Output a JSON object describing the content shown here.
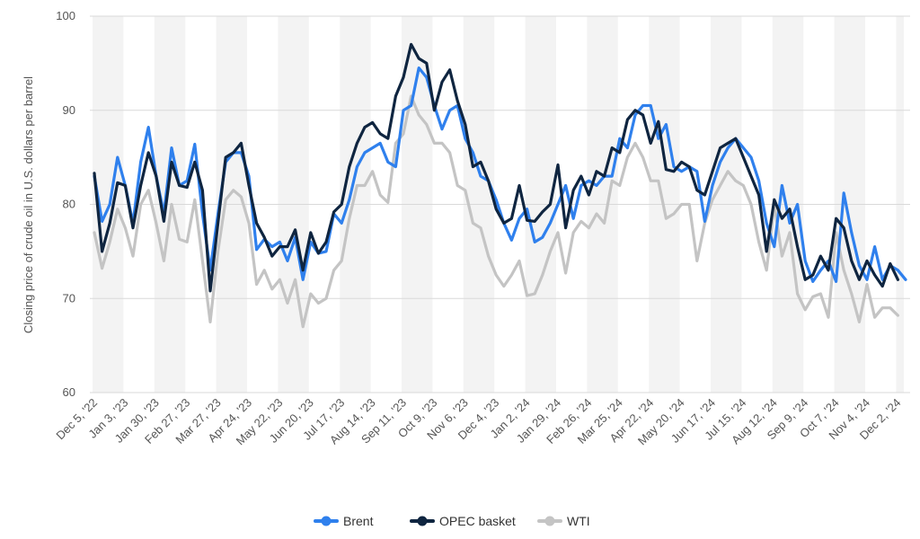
{
  "chart_data": {
    "type": "line",
    "title": "",
    "ylabel": "Closing price of crude oil in U.S. dollars per barrel",
    "xlabel": "",
    "ylim": [
      60,
      100
    ],
    "yticks": [
      60,
      70,
      80,
      90,
      100
    ],
    "grid": true,
    "legend_position": "bottom-center",
    "x_tick_labels": [
      "Dec 5, '22",
      "Jan 3, '23",
      "Jan 30, '23",
      "Feb 27, '23",
      "Mar 27, '23",
      "Apr 24, '23",
      "May 22, '23",
      "Jun 20, '23",
      "Jul 17, '23",
      "Aug 14, '23",
      "Sep 11, '23",
      "Oct 9, '23",
      "Nov 6, '23",
      "Dec 4, '23",
      "Jan 2, '24",
      "Jan 29, '24",
      "Feb 26, '24",
      "Mar 25, '24",
      "Apr 22, '24",
      "May 20, '24",
      "Jun 17, '24",
      "Jul 15, '24",
      "Aug 12, '24",
      "Sep 9, '24",
      "Oct 7, '24",
      "Nov 4, '24",
      "Dec 2, '24"
    ],
    "x_tick_every": 4,
    "series": [
      {
        "name": "Brent",
        "color": "#2f80ed",
        "values": [
          83.0,
          78.2,
          80.0,
          85.0,
          82.0,
          78.0,
          84.5,
          88.2,
          83.0,
          79.0,
          86.0,
          82.0,
          82.5,
          86.4,
          79.0,
          73.0,
          79.0,
          84.5,
          85.5,
          85.5,
          83.0,
          75.2,
          76.3,
          75.5,
          76.0,
          74.0,
          76.5,
          72.0,
          76.0,
          74.8,
          75.0,
          79.0,
          78.0,
          80.5,
          84.0,
          85.5,
          86.0,
          86.5,
          84.5,
          84.0,
          90.0,
          90.5,
          94.5,
          93.5,
          90.5,
          88.0,
          90.0,
          90.5,
          87.0,
          85.5,
          83.0,
          82.5,
          80.5,
          78.0,
          76.2,
          78.5,
          79.5,
          76.0,
          76.5,
          78.0,
          80.0,
          82.0,
          78.5,
          82.0,
          82.5,
          82.0,
          83.0,
          83.0,
          87.0,
          86.0,
          89.5,
          90.5,
          90.5,
          87.0,
          88.5,
          84.0,
          83.5,
          84.0,
          83.5,
          78.2,
          82.0,
          84.5,
          86.0,
          87.0,
          86.0,
          85.0,
          82.5,
          78.0,
          75.5,
          82.0,
          78.0,
          80.0,
          74.0,
          71.8,
          73.0,
          74.0,
          71.8,
          81.2,
          77.0,
          73.5,
          72.0,
          75.5,
          72.0,
          73.5,
          73.0,
          72.0
        ]
      },
      {
        "name": "OPEC basket",
        "color": "#0f2540",
        "values": [
          83.3,
          75.0,
          78.0,
          82.3,
          82.0,
          77.5,
          82.0,
          85.5,
          83.0,
          78.2,
          84.5,
          82.0,
          81.8,
          84.5,
          81.5,
          70.8,
          78.0,
          85.0,
          85.5,
          86.5,
          82.0,
          78.0,
          76.5,
          74.5,
          75.5,
          75.5,
          77.3,
          73.0,
          77.0,
          74.8,
          76.0,
          79.2,
          80.0,
          84.0,
          86.5,
          88.2,
          88.7,
          87.5,
          87.0,
          91.5,
          93.5,
          97.0,
          95.5,
          95.0,
          90.0,
          93.0,
          94.3,
          91.0,
          88.5,
          84.0,
          84.5,
          82.5,
          79.5,
          78.0,
          78.5,
          82.0,
          78.3,
          78.2,
          79.2,
          80.0,
          84.2,
          77.5,
          81.5,
          83.0,
          81.0,
          83.5,
          83.0,
          86.0,
          85.5,
          89.0,
          90.0,
          89.5,
          86.5,
          88.8,
          83.7,
          83.5,
          84.5,
          84.0,
          81.5,
          81.0,
          83.5,
          86.0,
          86.5,
          87.0,
          85.0,
          83.0,
          81.0,
          75.0,
          80.5,
          78.5,
          79.5,
          75.5,
          72.0,
          72.5,
          74.5,
          73.0,
          78.5,
          77.5,
          74.0,
          72.0,
          74.0,
          72.5,
          71.3,
          73.7,
          72.0
        ]
      },
      {
        "name": "WTI",
        "color": "#c4c4c4",
        "values": [
          77.0,
          73.2,
          76.0,
          79.5,
          77.5,
          74.5,
          80.0,
          81.5,
          78.0,
          74.0,
          80.0,
          76.3,
          76.0,
          80.5,
          74.0,
          67.5,
          75.0,
          80.5,
          81.5,
          80.8,
          78.0,
          71.5,
          73.0,
          71.0,
          72.0,
          69.5,
          72.0,
          67.0,
          70.5,
          69.5,
          70.0,
          73.0,
          74.0,
          78.5,
          82.0,
          82.0,
          83.5,
          81.0,
          80.2,
          86.5,
          87.5,
          91.5,
          89.5,
          88.5,
          86.5,
          86.5,
          85.5,
          82.0,
          81.5,
          78.0,
          77.5,
          74.5,
          72.5,
          71.3,
          72.5,
          74.0,
          70.3,
          70.5,
          72.5,
          75.0,
          77.0,
          72.7,
          77.0,
          78.2,
          77.5,
          79.0,
          78.0,
          82.5,
          82.0,
          85.0,
          86.5,
          85.0,
          82.5,
          82.5,
          78.5,
          79.0,
          80.0,
          80.0,
          74.0,
          78.0,
          80.5,
          82.0,
          83.5,
          82.5,
          82.0,
          80.0,
          76.0,
          73.0,
          80.0,
          74.5,
          77.0,
          70.5,
          68.8,
          70.2,
          70.5,
          68.0,
          77.0,
          73.0,
          70.5,
          67.5,
          71.5,
          68.0,
          69.0,
          69.0,
          68.2
        ]
      }
    ]
  }
}
